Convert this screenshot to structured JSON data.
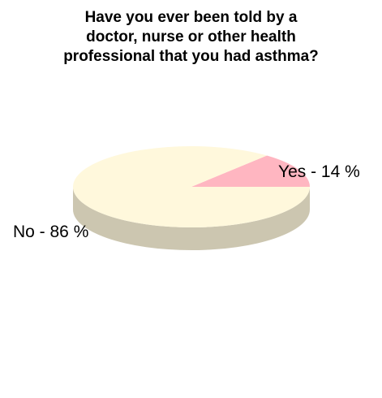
{
  "chart_data": {
    "type": "pie",
    "title_lines": [
      "Have you ever been told by a",
      "doctor, nurse or other health",
      "professional that you had asthma?"
    ],
    "slices": [
      {
        "label": "Yes - 14 %",
        "value": 14,
        "color": "#ffb6c1",
        "side_color": "#d9a0a8"
      },
      {
        "label": "No - 86 %",
        "value": 86,
        "color": "#fff8dc",
        "side_color": "#ccc6b0"
      }
    ],
    "style": "3d"
  }
}
